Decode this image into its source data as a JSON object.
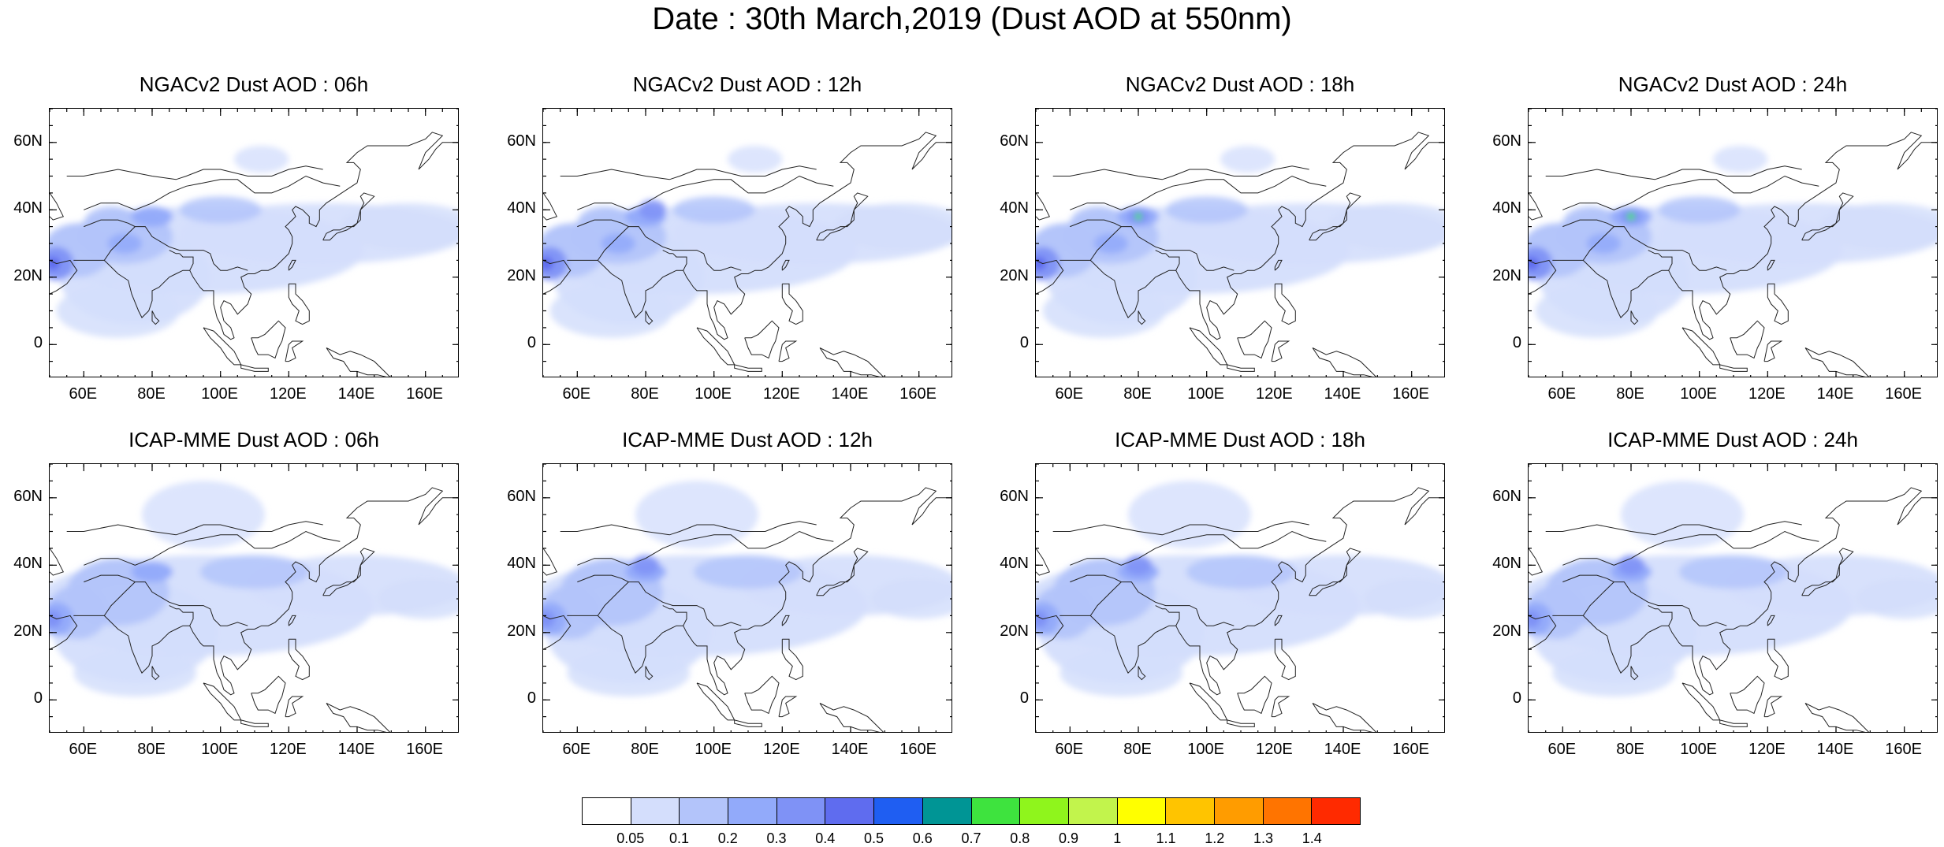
{
  "figure": {
    "title": "Date : 30th March,2019 (Dust AOD at 550nm)"
  },
  "map": {
    "lon_range": [
      50,
      170
    ],
    "lat_range": [
      -10,
      70
    ],
    "lon_ticks": [
      {
        "value": 60,
        "label": "60E"
      },
      {
        "value": 80,
        "label": "80E"
      },
      {
        "value": 100,
        "label": "100E"
      },
      {
        "value": 120,
        "label": "120E"
      },
      {
        "value": 140,
        "label": "140E"
      },
      {
        "value": 160,
        "label": "160E"
      }
    ],
    "lat_ticks": [
      {
        "value": 60,
        "label": "60N"
      },
      {
        "value": 40,
        "label": "40N"
      },
      {
        "value": 20,
        "label": "20N"
      },
      {
        "value": 0,
        "label": "0"
      }
    ]
  },
  "panels": [
    {
      "id": "ngac-06",
      "title": "NGACv2 Dust AOD : 06h",
      "model": "ngac",
      "hour": 6
    },
    {
      "id": "ngac-12",
      "title": "NGACv2 Dust AOD : 12h",
      "model": "ngac",
      "hour": 12
    },
    {
      "id": "ngac-18",
      "title": "NGACv2 Dust AOD : 18h",
      "model": "ngac",
      "hour": 18
    },
    {
      "id": "ngac-24",
      "title": "NGACv2 Dust AOD : 24h",
      "model": "ngac",
      "hour": 24
    },
    {
      "id": "icap-06",
      "title": "ICAP-MME Dust AOD : 06h",
      "model": "icap",
      "hour": 6
    },
    {
      "id": "icap-12",
      "title": "ICAP-MME Dust AOD : 12h",
      "model": "icap",
      "hour": 12
    },
    {
      "id": "icap-18",
      "title": "ICAP-MME Dust AOD : 18h",
      "model": "icap",
      "hour": 18
    },
    {
      "id": "icap-24",
      "title": "ICAP-MME Dust AOD : 24h",
      "model": "icap",
      "hour": 24
    }
  ],
  "colorbar": {
    "labels": [
      "0.05",
      "0.1",
      "0.2",
      "0.3",
      "0.4",
      "0.5",
      "0.6",
      "0.7",
      "0.8",
      "0.9",
      "1",
      "1.1",
      "1.2",
      "1.3",
      "1.4"
    ],
    "colors": [
      "#ffffff",
      "#d4defc",
      "#b3c4fa",
      "#92aafa",
      "#7f92f6",
      "#5f6cef",
      "#1f5ef2",
      "#009595",
      "#3ee33e",
      "#8ff51c",
      "#c2f44c",
      "#ffff00",
      "#ffc400",
      "#ff9c00",
      "#ff7400",
      "#ff2a00"
    ]
  }
}
